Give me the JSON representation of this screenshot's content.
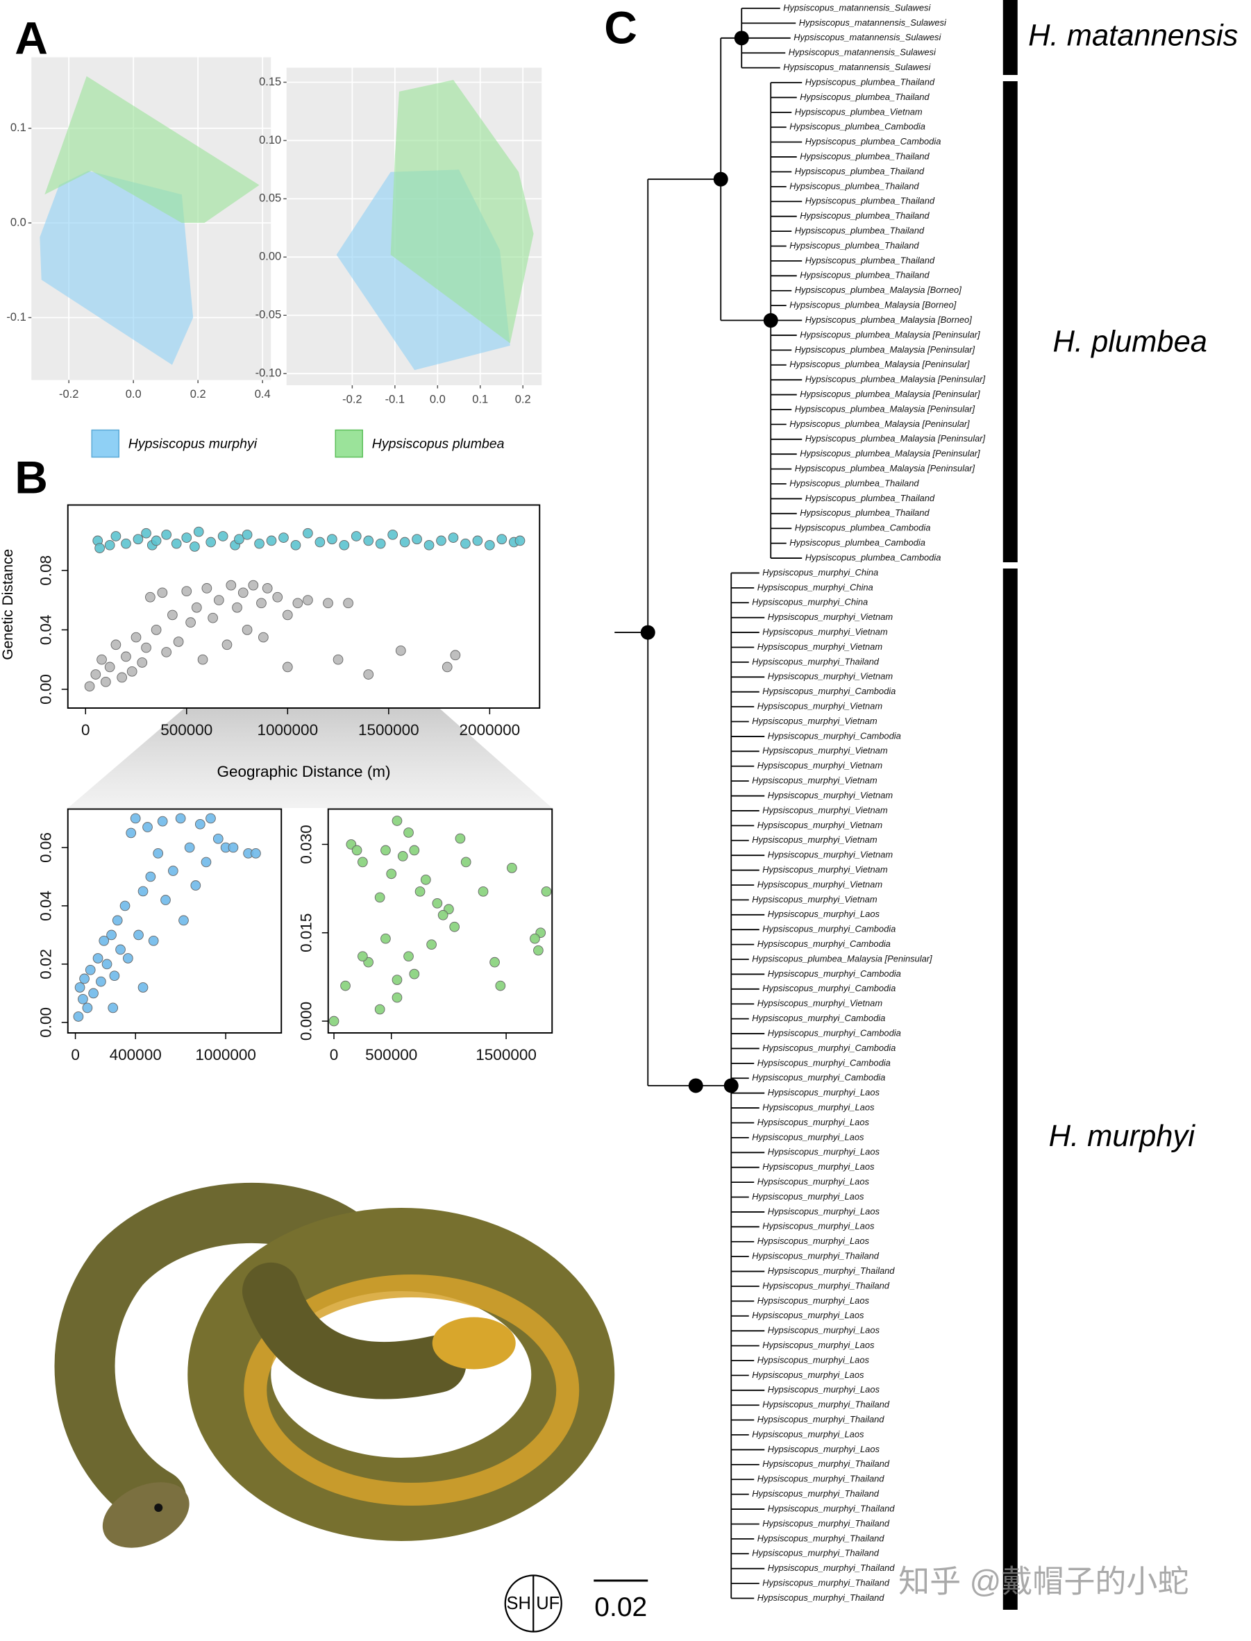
{
  "panels": [
    "A",
    "B",
    "C"
  ],
  "chart_data": [
    {
      "type": "polygon",
      "grid": true,
      "xlim": [
        -0.316,
        0.426
      ],
      "ylim": [
        -0.166,
        0.175
      ],
      "xticks": [
        -0.2,
        {
          "value": 0,
          "label": "0.0"
        },
        0.2,
        0.4
      ],
      "yticks": [
        -0.1,
        {
          "value": 0,
          "label": "0.0"
        },
        0.1
      ],
      "series": [
        {
          "name": "Hypsiscopus murphyi",
          "color": "#8fd0f5",
          "x": [
            -0.29,
            -0.285,
            0.12,
            0.185,
            0.15,
            -0.14,
            -0.23
          ],
          "y": [
            -0.015,
            -0.06,
            -0.15,
            -0.1,
            0.03,
            0.055,
            0.04
          ]
        },
        {
          "name": "Hypsiscopus plumbea",
          "color": "#9be39a",
          "x": [
            -0.145,
            0.39,
            0.22,
            0.15,
            -0.13,
            -0.275
          ],
          "y": [
            0.155,
            0.04,
            0.0,
            0.0,
            0.055,
            0.03
          ]
        }
      ]
    },
    {
      "type": "polygon",
      "grid": true,
      "xlim": [
        -0.354,
        0.244
      ],
      "ylim": [
        -0.11,
        0.1625
      ],
      "xticks": [
        -0.2,
        -0.1,
        {
          "value": 0,
          "label": "0.0"
        },
        0.1,
        0.2
      ],
      "yticks": [
        {
          "value": -0.1,
          "label": "-0.10"
        },
        {
          "value": -0.05,
          "label": "-0.05"
        },
        {
          "value": 0,
          "label": "0.00"
        },
        {
          "value": 0.05,
          "label": "0.05"
        },
        {
          "value": 0.1,
          "label": "0.10"
        },
        {
          "value": 0.15,
          "label": "0.15"
        }
      ],
      "series": [
        {
          "color": "#8fd0f5",
          "x": [
            -0.237,
            -0.11,
            0.05,
            0.146,
            0.17,
            -0.054
          ],
          "y": [
            0.002,
            0.073,
            0.075,
            0.006,
            -0.076,
            -0.097
          ]
        },
        {
          "color": "#9be39a",
          "x": [
            -0.09,
            0.037,
            0.19,
            0.225,
            0.17,
            -0.11,
            -0.1
          ],
          "y": [
            0.142,
            0.152,
            0.073,
            0.02,
            -0.074,
            0.002,
            0.087
          ]
        }
      ]
    },
    {
      "type": "scatter",
      "grid": false,
      "xlabel": "Geographic Distance (m)",
      "ylabel": "Genetic Distance",
      "xlim": [
        -87600,
        2247000
      ],
      "ylim": [
        -0.0126,
        0.124
      ],
      "xticks": [
        0,
        500000,
        1000000,
        1500000,
        2000000
      ],
      "yticks": [
        {
          "value": 0,
          "label": "0.00"
        },
        {
          "value": 0.04,
          "label": "0.04"
        },
        {
          "value": 0.08,
          "label": "0.08"
        }
      ],
      "series": [
        {
          "color": "#5cc3cf",
          "x": [
            60000,
            70000,
            120000,
            150000,
            200000,
            260000,
            300000,
            330000,
            350000,
            400000,
            450000,
            500000,
            540000,
            560000,
            620000,
            680000,
            740000,
            760000,
            800000,
            860000,
            920000,
            980000,
            1040000,
            1100000,
            1160000,
            1220000,
            1280000,
            1340000,
            1400000,
            1460000,
            1520000,
            1580000,
            1640000,
            1700000,
            1760000,
            1820000,
            1880000,
            1940000,
            2000000,
            2060000,
            2120000,
            2150000
          ],
          "y": [
            0.1,
            0.095,
            0.097,
            0.103,
            0.098,
            0.101,
            0.105,
            0.097,
            0.1,
            0.104,
            0.098,
            0.102,
            0.096,
            0.106,
            0.099,
            0.103,
            0.097,
            0.101,
            0.104,
            0.098,
            0.1,
            0.102,
            0.097,
            0.105,
            0.099,
            0.101,
            0.097,
            0.103,
            0.1,
            0.098,
            0.104,
            0.099,
            0.101,
            0.097,
            0.1,
            0.102,
            0.098,
            0.1,
            0.097,
            0.101,
            0.099,
            0.1
          ]
        },
        {
          "color": "#b8b8b8",
          "x": [
            20000,
            50000,
            80000,
            100000,
            120000,
            150000,
            180000,
            200000,
            230000,
            250000,
            280000,
            300000,
            320000,
            350000,
            380000,
            400000,
            430000,
            460000,
            500000,
            520000,
            550000,
            580000,
            600000,
            630000,
            660000,
            700000,
            720000,
            750000,
            780000,
            800000,
            830000,
            870000,
            880000,
            900000,
            950000,
            1000000,
            1050000,
            1100000,
            1200000,
            1300000,
            1000000,
            1250000,
            1400000,
            1560000,
            1790000,
            1830000
          ],
          "y": [
            0.002,
            0.01,
            0.02,
            0.005,
            0.015,
            0.03,
            0.008,
            0.022,
            0.012,
            0.035,
            0.018,
            0.028,
            0.062,
            0.04,
            0.065,
            0.025,
            0.05,
            0.032,
            0.066,
            0.045,
            0.055,
            0.02,
            0.068,
            0.048,
            0.06,
            0.03,
            0.07,
            0.055,
            0.065,
            0.04,
            0.07,
            0.058,
            0.035,
            0.068,
            0.062,
            0.05,
            0.058,
            0.06,
            0.058,
            0.058,
            0.015,
            0.02,
            0.01,
            0.026,
            0.015,
            0.023
          ]
        }
      ]
    },
    {
      "type": "scatter",
      "grid": false,
      "xlim": [
        -50000,
        1370000
      ],
      "ylim": [
        -0.0036,
        0.0732
      ],
      "xticks": [
        0,
        400000,
        1000000
      ],
      "yticks": [
        {
          "value": 0,
          "label": "0.00"
        },
        {
          "value": 0.02,
          "label": "0.02"
        },
        {
          "value": 0.04,
          "label": "0.04"
        },
        {
          "value": 0.06,
          "label": "0.06"
        }
      ],
      "series": [
        {
          "color": "#6fb9ea",
          "x": [
            20000,
            30000,
            50000,
            60000,
            80000,
            100000,
            120000,
            150000,
            170000,
            190000,
            210000,
            240000,
            250000,
            260000,
            280000,
            300000,
            330000,
            350000,
            370000,
            400000,
            420000,
            450000,
            450000,
            480000,
            500000,
            520000,
            550000,
            580000,
            600000,
            650000,
            700000,
            720000,
            760000,
            800000,
            830000,
            870000,
            900000,
            950000,
            1000000,
            1050000,
            1150000,
            1200000
          ],
          "y": [
            0.002,
            0.012,
            0.008,
            0.015,
            0.005,
            0.018,
            0.01,
            0.022,
            0.014,
            0.028,
            0.02,
            0.03,
            0.005,
            0.016,
            0.035,
            0.025,
            0.04,
            0.022,
            0.065,
            0.07,
            0.03,
            0.045,
            0.012,
            0.067,
            0.05,
            0.028,
            0.058,
            0.069,
            0.042,
            0.052,
            0.07,
            0.035,
            0.06,
            0.047,
            0.068,
            0.055,
            0.07,
            0.063,
            0.06,
            0.06,
            0.058,
            0.058
          ]
        }
      ]
    },
    {
      "type": "scatter",
      "grid": false,
      "xlim": [
        -50000,
        1900000
      ],
      "ylim": [
        -0.002,
        0.036
      ],
      "xticks": [
        0,
        500000,
        1500000
      ],
      "yticks": [
        {
          "value": 0,
          "label": "0.000"
        },
        {
          "value": 0.015,
          "label": "0.015"
        },
        {
          "value": 0.03,
          "label": "0.030"
        }
      ],
      "series": [
        {
          "color": "#86d27a",
          "x": [
            0,
            400000,
            450000,
            300000,
            250000,
            100000,
            550000,
            550000,
            650000,
            700000,
            850000,
            1400000,
            1450000,
            1780000,
            1800000,
            1750000,
            150000,
            200000,
            250000,
            450000,
            550000,
            600000,
            700000,
            500000,
            800000,
            900000,
            1000000,
            1150000,
            1300000,
            1550000,
            1850000,
            650000,
            750000,
            400000,
            1100000,
            950000,
            1050000
          ],
          "y": [
            0.0,
            0.002,
            0.014,
            0.01,
            0.011,
            0.006,
            0.007,
            0.004,
            0.011,
            0.008,
            0.013,
            0.01,
            0.006,
            0.012,
            0.015,
            0.014,
            0.03,
            0.029,
            0.027,
            0.029,
            0.034,
            0.028,
            0.029,
            0.025,
            0.024,
            0.02,
            0.019,
            0.027,
            0.022,
            0.026,
            0.022,
            0.032,
            0.022,
            0.021,
            0.031,
            0.018,
            0.016
          ]
        }
      ]
    }
  ],
  "tree": {
    "tips": [
      "Hypsiscopus_matannensis_Sulawesi",
      "Hypsiscopus_matannensis_Sulawesi",
      "Hypsiscopus_matannensis_Sulawesi",
      "Hypsiscopus_matannensis_Sulawesi",
      "Hypsiscopus_matannensis_Sulawesi",
      "Hypsiscopus_plumbea_Thailand",
      "Hypsiscopus_plumbea_Thailand",
      "Hypsiscopus_plumbea_Vietnam",
      "Hypsiscopus_plumbea_Cambodia",
      "Hypsiscopus_plumbea_Cambodia",
      "Hypsiscopus_plumbea_Thailand",
      "Hypsiscopus_plumbea_Thailand",
      "Hypsiscopus_plumbea_Thailand",
      "Hypsiscopus_plumbea_Thailand",
      "Hypsiscopus_plumbea_Thailand",
      "Hypsiscopus_plumbea_Thailand",
      "Hypsiscopus_plumbea_Thailand",
      "Hypsiscopus_plumbea_Thailand",
      "Hypsiscopus_plumbea_Thailand",
      "Hypsiscopus_plumbea_Malaysia [Borneo]",
      "Hypsiscopus_plumbea_Malaysia [Borneo]",
      "Hypsiscopus_plumbea_Malaysia [Borneo]",
      "Hypsiscopus_plumbea_Malaysia [Peninsular]",
      "Hypsiscopus_plumbea_Malaysia [Peninsular]",
      "Hypsiscopus_plumbea_Malaysia [Peninsular]",
      "Hypsiscopus_plumbea_Malaysia [Peninsular]",
      "Hypsiscopus_plumbea_Malaysia [Peninsular]",
      "Hypsiscopus_plumbea_Malaysia [Peninsular]",
      "Hypsiscopus_plumbea_Malaysia [Peninsular]",
      "Hypsiscopus_plumbea_Malaysia [Peninsular]",
      "Hypsiscopus_plumbea_Malaysia [Peninsular]",
      "Hypsiscopus_plumbea_Malaysia [Peninsular]",
      "Hypsiscopus_plumbea_Thailand",
      "Hypsiscopus_plumbea_Thailand",
      "Hypsiscopus_plumbea_Thailand",
      "Hypsiscopus_plumbea_Cambodia",
      "Hypsiscopus_plumbea_Cambodia",
      "Hypsiscopus_plumbea_Cambodia",
      "Hypsiscopus_murphyi_China",
      "Hypsiscopus_murphyi_China",
      "Hypsiscopus_murphyi_China",
      "Hypsiscopus_murphyi_Vietnam",
      "Hypsiscopus_murphyi_Vietnam",
      "Hypsiscopus_murphyi_Vietnam",
      "Hypsiscopus_murphyi_Thailand",
      "Hypsiscopus_murphyi_Vietnam",
      "Hypsiscopus_murphyi_Cambodia",
      "Hypsiscopus_murphyi_Vietnam",
      "Hypsiscopus_murphyi_Vietnam",
      "Hypsiscopus_murphyi_Cambodia",
      "Hypsiscopus_murphyi_Vietnam",
      "Hypsiscopus_murphyi_Vietnam",
      "Hypsiscopus_murphyi_Vietnam",
      "Hypsiscopus_murphyi_Vietnam",
      "Hypsiscopus_murphyi_Vietnam",
      "Hypsiscopus_murphyi_Vietnam",
      "Hypsiscopus_murphyi_Vietnam",
      "Hypsiscopus_murphyi_Vietnam",
      "Hypsiscopus_murphyi_Vietnam",
      "Hypsiscopus_murphyi_Vietnam",
      "Hypsiscopus_murphyi_Vietnam",
      "Hypsiscopus_murphyi_Laos",
      "Hypsiscopus_murphyi_Cambodia",
      "Hypsiscopus_murphyi_Cambodia",
      "Hypsiscopus_plumbea_Malaysia [Peninsular]",
      "Hypsiscopus_murphyi_Cambodia",
      "Hypsiscopus_murphyi_Cambodia",
      "Hypsiscopus_murphyi_Vietnam",
      "Hypsiscopus_murphyi_Cambodia",
      "Hypsiscopus_murphyi_Cambodia",
      "Hypsiscopus_murphyi_Cambodia",
      "Hypsiscopus_murphyi_Cambodia",
      "Hypsiscopus_murphyi_Cambodia",
      "Hypsiscopus_murphyi_Laos",
      "Hypsiscopus_murphyi_Laos",
      "Hypsiscopus_murphyi_Laos",
      "Hypsiscopus_murphyi_Laos",
      "Hypsiscopus_murphyi_Laos",
      "Hypsiscopus_murphyi_Laos",
      "Hypsiscopus_murphyi_Laos",
      "Hypsiscopus_murphyi_Laos",
      "Hypsiscopus_murphyi_Laos",
      "Hypsiscopus_murphyi_Laos",
      "Hypsiscopus_murphyi_Laos",
      "Hypsiscopus_murphyi_Thailand",
      "Hypsiscopus_murphyi_Thailand",
      "Hypsiscopus_murphyi_Thailand",
      "Hypsiscopus_murphyi_Laos",
      "Hypsiscopus_murphyi_Laos",
      "Hypsiscopus_murphyi_Laos",
      "Hypsiscopus_murphyi_Laos",
      "Hypsiscopus_murphyi_Laos",
      "Hypsiscopus_murphyi_Laos",
      "Hypsiscopus_murphyi_Laos",
      "Hypsiscopus_murphyi_Thailand",
      "Hypsiscopus_murphyi_Thailand",
      "Hypsiscopus_murphyi_Laos",
      "Hypsiscopus_murphyi_Laos",
      "Hypsiscopus_murphyi_Thailand",
      "Hypsiscopus_murphyi_Thailand",
      "Hypsiscopus_murphyi_Thailand",
      "Hypsiscopus_murphyi_Thailand",
      "Hypsiscopus_murphyi_Thailand",
      "Hypsiscopus_murphyi_Thailand",
      "Hypsiscopus_murphyi_Thailand",
      "Hypsiscopus_murphyi_Thailand",
      "Hypsiscopus_murphyi_Thailand",
      "Hypsiscopus_murphyi_Thailand"
    ],
    "clades": [
      "H. matannensis",
      "H. plumbea",
      "H. murphyi"
    ],
    "support_legend": {
      "left": "SH",
      "right": "UF"
    },
    "scale_bar": 0.02
  },
  "watermark": "知乎 @戴帽子的小蛇"
}
